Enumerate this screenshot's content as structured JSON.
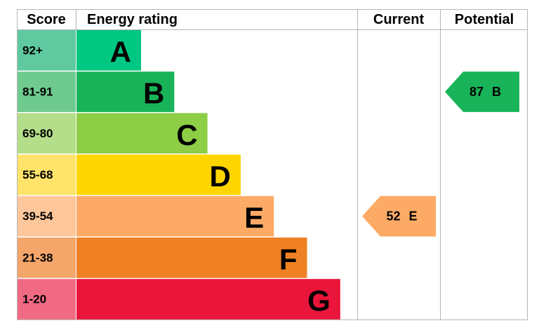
{
  "header": {
    "score": "Score",
    "energy_rating": "Energy rating",
    "current": "Current",
    "potential": "Potential"
  },
  "bands": [
    {
      "score": "92+",
      "rating": "A",
      "color": "#00c781",
      "score_color": "#5fc9a0"
    },
    {
      "score": "81-91",
      "rating": "B",
      "color": "#19b459",
      "score_color": "#6fca8f"
    },
    {
      "score": "69-80",
      "rating": "C",
      "color": "#8dce46",
      "score_color": "#b4de8a"
    },
    {
      "score": "55-68",
      "rating": "D",
      "color": "#ffd500",
      "score_color": "#ffe36a"
    },
    {
      "score": "39-54",
      "rating": "E",
      "color": "#fcaa65",
      "score_color": "#fdc79b"
    },
    {
      "score": "21-38",
      "rating": "F",
      "color": "#ef8023",
      "score_color": "#f4a66b"
    },
    {
      "score": "1-20",
      "rating": "G",
      "color": "#e9153b",
      "score_color": "#f06a83"
    }
  ],
  "current": {
    "score": 52,
    "rating": "E"
  },
  "potential": {
    "score": 87,
    "rating": "B"
  }
}
